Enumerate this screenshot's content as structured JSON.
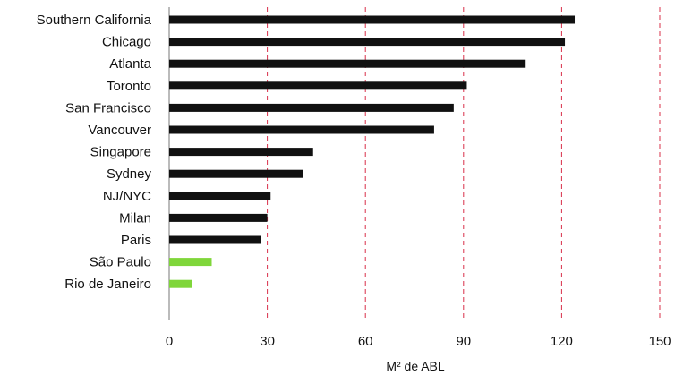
{
  "chart_data": {
    "type": "bar",
    "orientation": "horizontal",
    "categories": [
      "Southern California",
      "Chicago",
      "Atlanta",
      "Toronto",
      "San Francisco",
      "Vancouver",
      "Singapore",
      "Sydney",
      "NJ/NYC",
      "Milan",
      "Paris",
      "São Paulo",
      "Rio de Janeiro"
    ],
    "values": [
      124,
      121,
      109,
      91,
      87,
      81,
      44,
      41,
      31,
      30,
      28,
      13,
      7
    ],
    "bar_colors": [
      "#111111",
      "#111111",
      "#111111",
      "#111111",
      "#111111",
      "#111111",
      "#111111",
      "#111111",
      "#111111",
      "#111111",
      "#111111",
      "#7fd63a",
      "#7fd63a"
    ],
    "xlabel": "M² de ABL",
    "ylabel": "",
    "xlim": [
      0,
      150
    ],
    "xticks": [
      0,
      30,
      60,
      90,
      120,
      150
    ],
    "grid": "vertical dashed",
    "grid_color": "#d9304a",
    "legend": "none"
  }
}
